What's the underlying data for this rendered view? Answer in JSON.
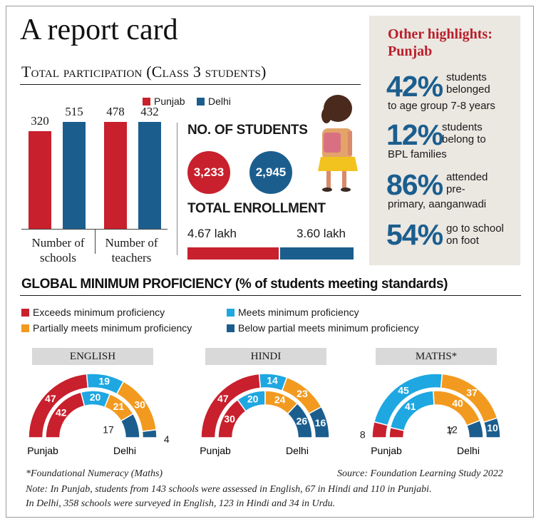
{
  "title": "A report card",
  "participation": {
    "heading": "Total participation (Class 3 students)",
    "legend": [
      {
        "label": "Punjab",
        "color": "#c8202d"
      },
      {
        "label": "Delhi",
        "color": "#1b5e8e"
      }
    ],
    "categories": [
      {
        "line1": "Number of",
        "line2": "schools"
      },
      {
        "line1": "Number of",
        "line2": "teachers"
      }
    ],
    "bar_labels": [
      "320",
      "515",
      "478",
      "432"
    ]
  },
  "students": {
    "heading": "NO. OF STUDENTS",
    "punjab": "3,233",
    "delhi": "2,945"
  },
  "enrollment": {
    "heading": "TOTAL ENROLLMENT",
    "punjab": "4.67 lakh",
    "delhi": "3.60 lakh"
  },
  "highlights": {
    "title_line1": "Other highlights:",
    "title_line2": "Punjab",
    "items": [
      {
        "pct": "42%",
        "line1": "students",
        "line2": "belonged",
        "line3": "to age group 7-8 years"
      },
      {
        "pct": "12%",
        "line1": "students",
        "line2": "belong to",
        "line3": "BPL families"
      },
      {
        "pct": "86%",
        "line1": "attended",
        "line2": "pre-",
        "line3": "primary, aanganwadi"
      },
      {
        "pct": "54%",
        "line1": "go to school",
        "line2": "on foot",
        "line3": ""
      }
    ]
  },
  "proficiency": {
    "heading": "GLOBAL MINIMUM PROFICIENCY (% of students meeting standards)",
    "legend": [
      {
        "label": "Exceeds minimum proficiency",
        "color": "#c8202d"
      },
      {
        "label": "Meets minimum proficiency",
        "color": "#1ea7e1"
      },
      {
        "label": "Partially meets minimum proficiency",
        "color": "#f29a1f"
      },
      {
        "label": "Below partial meets minimum proficiency",
        "color": "#1b5e8e"
      }
    ],
    "subjects": [
      "ENGLISH",
      "HINDI",
      "MATHS*"
    ],
    "outer_label": "Punjab",
    "inner_label": "Delhi"
  },
  "chart_data": [
    {
      "type": "bar",
      "title": "Total participation (Class 3 students)",
      "categories": [
        "Number of schools",
        "Number of teachers"
      ],
      "series": [
        {
          "name": "Punjab",
          "values": [
            320,
            478
          ]
        },
        {
          "name": "Delhi",
          "values": [
            515,
            432
          ]
        }
      ],
      "ylim": [
        0,
        560
      ]
    },
    {
      "type": "pie",
      "title": "ENGLISH",
      "series": [
        {
          "name": "Punjab",
          "values": [
            47,
            19,
            30,
            4
          ]
        },
        {
          "name": "Delhi",
          "values": [
            42,
            20,
            21,
            17
          ]
        }
      ],
      "categories": [
        "Exceeds minimum proficiency",
        "Meets minimum proficiency",
        "Partially meets minimum proficiency",
        "Below partial meets minimum proficiency"
      ]
    },
    {
      "type": "pie",
      "title": "HINDI",
      "series": [
        {
          "name": "Punjab",
          "values": [
            47,
            14,
            23,
            16
          ]
        },
        {
          "name": "Delhi",
          "values": [
            30,
            20,
            24,
            26
          ]
        }
      ],
      "categories": [
        "Exceeds minimum proficiency",
        "Meets minimum proficiency",
        "Partially meets minimum proficiency",
        "Below partial meets minimum proficiency"
      ]
    },
    {
      "type": "pie",
      "title": "MATHS*",
      "series": [
        {
          "name": "Punjab",
          "values": [
            8,
            45,
            37,
            10
          ]
        },
        {
          "name": "Delhi",
          "values": [
            7,
            41,
            40,
            12
          ]
        }
      ],
      "categories": [
        "Exceeds minimum proficiency",
        "Meets minimum proficiency",
        "Partially meets minimum proficiency",
        "Below partial meets minimum proficiency"
      ]
    }
  ],
  "footnotes": {
    "maths_note": "*Foundational Numeracy (Maths)",
    "source": "Source: Foundation Learning Study 2022",
    "note_line1": "Note: In Punjab, students from 143 schools were assessed in English, 67 in Hindi and 110 in Punjabi.",
    "note_line2": "In Delhi, 358 schools were surveyed in English, 123 in Hindi and 34 in Urdu."
  }
}
